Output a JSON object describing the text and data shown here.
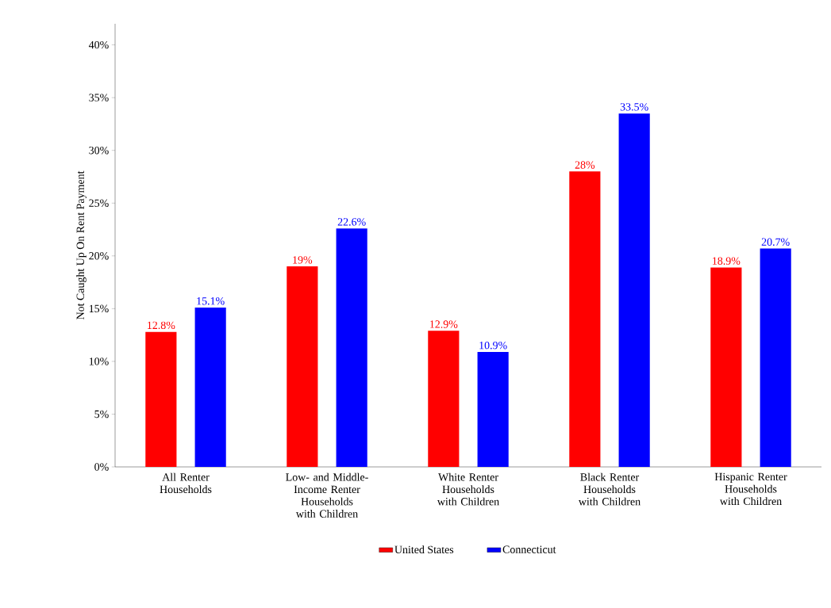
{
  "chart_data": {
    "type": "bar",
    "ylabel": "Not Caught Up On Rent Payment",
    "categories": [
      "All Renter Households",
      "Low- and Middle-Income Renter Households with Children",
      "White Renter Households with Children",
      "Black Renter Households with Children",
      "Hispanic Renter Households with Children"
    ],
    "series": [
      {
        "name": "United States",
        "color": "#ff0000",
        "values": [
          12.8,
          19,
          12.9,
          28,
          18.9
        ],
        "value_labels": [
          "12.8%",
          "19%",
          "12.9%",
          "28%",
          "18.9%"
        ]
      },
      {
        "name": "Connecticut",
        "color": "#0000ff",
        "values": [
          15.1,
          22.6,
          10.9,
          33.5,
          20.7
        ],
        "value_labels": [
          "15.1%",
          "22.6%",
          "10.9%",
          "33.5%",
          "20.7%"
        ]
      }
    ],
    "ylim": [
      0,
      42
    ],
    "yticks": [
      {
        "value": 0,
        "label": "0%"
      },
      {
        "value": 5,
        "label": "5%"
      },
      {
        "value": 10,
        "label": "10%"
      },
      {
        "value": 15,
        "label": "15%"
      },
      {
        "value": 20,
        "label": "20%"
      },
      {
        "value": 25,
        "label": "25%"
      },
      {
        "value": 30,
        "label": "30%"
      },
      {
        "value": 35,
        "label": "35%"
      },
      {
        "value": 40,
        "label": "40%"
      }
    ],
    "grid": false,
    "legend": "bottom"
  }
}
